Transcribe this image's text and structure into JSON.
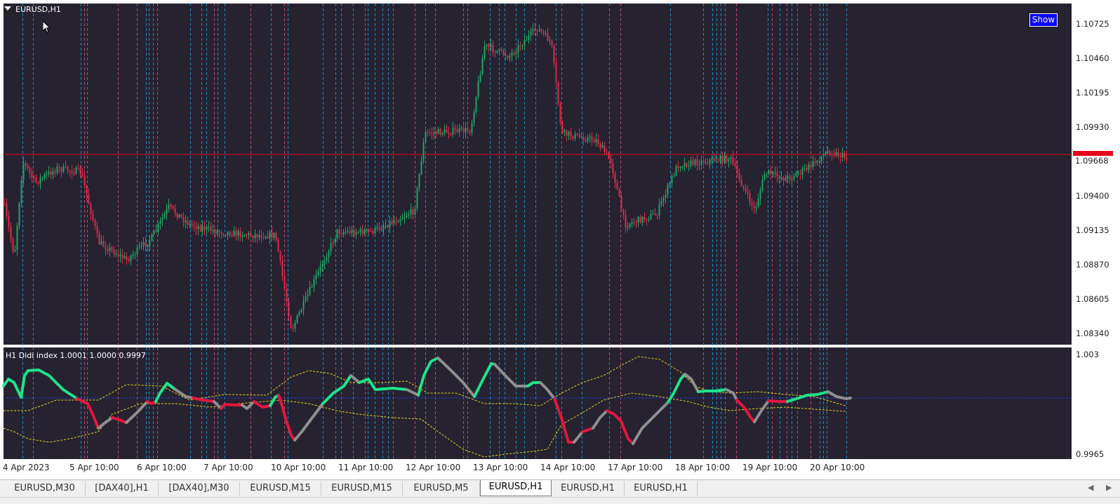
{
  "chart": {
    "symbol_title": "EURUSD,H1",
    "show_button_label": "Show",
    "price_axis": [
      "1.10725",
      "1.10460",
      "1.10195",
      "1.09930",
      "1.09400",
      "1.09135",
      "1.08870",
      "1.08605",
      "1.08340"
    ],
    "current_price": "1.09668",
    "time_axis": [
      "4 Apr 2023",
      "5 Apr 10:00",
      "6 Apr 10:00",
      "7 Apr 10:00",
      "10 Apr 10:00",
      "11 Apr 10:00",
      "12 Apr 10:00",
      "13 Apr 10:00",
      "14 Apr 10:00",
      "17 Apr 10:00",
      "18 Apr 10:00",
      "19 Apr 10:00",
      "20 Apr 10:00"
    ],
    "colors": {
      "background": "#262230",
      "bull_candle": "#1fa564",
      "bear_candle": "#e02a4a",
      "price_line": "#e8001c",
      "vline_cyan": "#1ba0d8",
      "vline_pink": "#d6537a",
      "indicator_green": "#1fe38a",
      "indicator_red": "#e5163f",
      "indicator_gray": "#8f8f8f",
      "band_yellow": "#e8d81a",
      "baseline_blue": "#1e3fd6"
    }
  },
  "indicator": {
    "title": "H1 Didi index 1.0001 1.0000 0.9997",
    "scale_top": "1.003",
    "scale_bottom": "0.9965"
  },
  "tabs": [
    {
      "label": "EURUSD,M30",
      "active": false
    },
    {
      "label": "[DAX40],H1",
      "active": false
    },
    {
      "label": "[DAX40],M30",
      "active": false
    },
    {
      "label": "EURUSD,M15",
      "active": false
    },
    {
      "label": "EURUSD,M15",
      "active": false
    },
    {
      "label": "EURUSD,M5",
      "active": false
    },
    {
      "label": "EURUSD,H1",
      "active": true
    },
    {
      "label": "EURUSD,H1",
      "active": false
    },
    {
      "label": "EURUSD,H1",
      "active": false
    }
  ],
  "icons": {
    "collapse": "triangle-down-icon",
    "scroll_left": "left-arrow-icon",
    "scroll_right": "right-arrow-icon",
    "cursor": "mouse-pointer-icon"
  }
}
